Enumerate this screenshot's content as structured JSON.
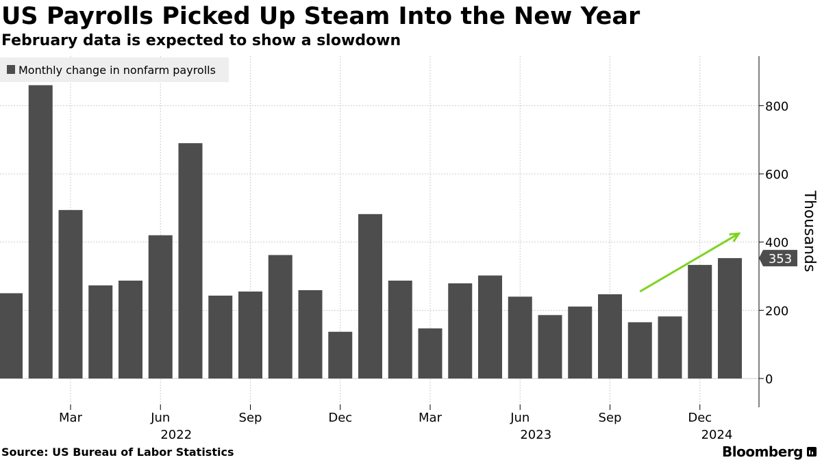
{
  "header": {
    "title": "US Payrolls Picked Up Steam Into the New Year",
    "subtitle": "February data is expected to show a slowdown"
  },
  "footer": {
    "source": "Source: US Bureau of Labor Statistics",
    "brand": "Bloomberg"
  },
  "colors": {
    "bar": "#4d4d4d",
    "arrow": "#7ed321",
    "grid": "#cccccc",
    "legend_bg": "#eeeeee"
  },
  "chart_data": {
    "type": "bar",
    "title": "US Payrolls Picked Up Steam Into the New Year",
    "subtitle": "February data is expected to show a slowdown",
    "ylabel": "Thousands",
    "ylim": [
      -80,
      940
    ],
    "yticks": [
      0,
      200,
      400,
      600,
      800
    ],
    "grid": true,
    "legend_position": "top-left",
    "categories": [
      "Jan 2022",
      "Feb 2022",
      "Mar 2022",
      "Apr 2022",
      "May 2022",
      "Jun 2022",
      "Jul 2022",
      "Aug 2022",
      "Sep 2022",
      "Oct 2022",
      "Nov 2022",
      "Dec 2022",
      "Jan 2023",
      "Feb 2023",
      "Mar 2023",
      "Apr 2023",
      "May 2023",
      "Jun 2023",
      "Jul 2023",
      "Aug 2023",
      "Sep 2023",
      "Oct 2023",
      "Nov 2023",
      "Dec 2023",
      "Jan 2024"
    ],
    "series": [
      {
        "name": "Monthly change in nonfarm payrolls",
        "values": [
          250,
          860,
          494,
          273,
          287,
          420,
          690,
          243,
          255,
          362,
          259,
          137,
          482,
          287,
          147,
          279,
          302,
          240,
          186,
          211,
          247,
          165,
          182,
          333,
          353
        ]
      }
    ],
    "x_tick_labels": [
      {
        "label": "Mar",
        "index": 2
      },
      {
        "label": "Jun",
        "index": 5
      },
      {
        "label": "Sep",
        "index": 8
      },
      {
        "label": "Dec",
        "index": 11
      },
      {
        "label": "Mar",
        "index": 14
      },
      {
        "label": "Jun",
        "index": 17
      },
      {
        "label": "Sep",
        "index": 20
      },
      {
        "label": "Dec",
        "index": 23
      }
    ],
    "year_labels": [
      {
        "label": "2022",
        "index": 5
      },
      {
        "label": "2023",
        "index": 17
      },
      {
        "label": "2024",
        "index": 24
      }
    ],
    "last_value_label": "353",
    "annotation": {
      "type": "upward-trend-arrow",
      "from_index": 21,
      "from_value": 255,
      "to_index": 24.3,
      "to_value": 425
    }
  }
}
